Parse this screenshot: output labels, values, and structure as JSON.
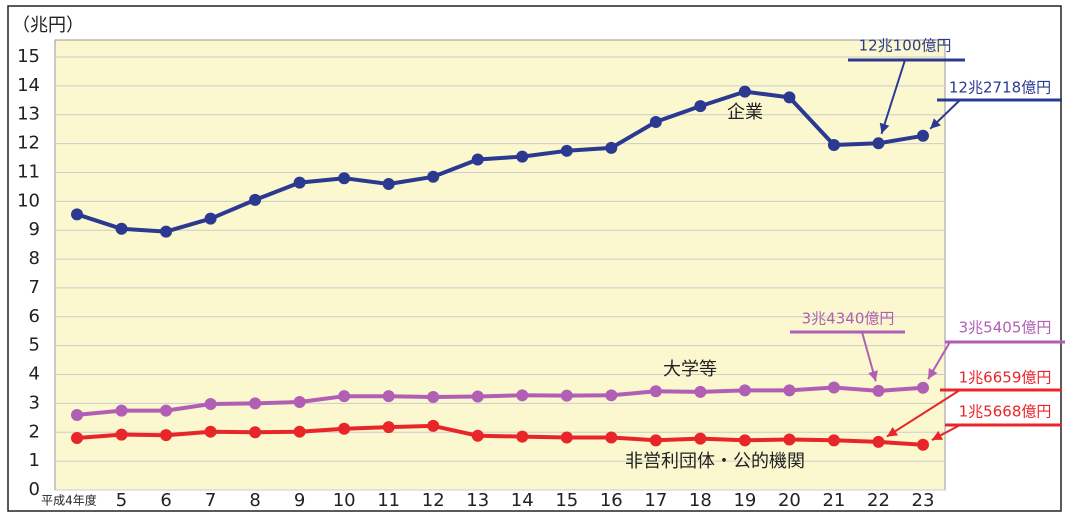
{
  "chart_data": {
    "type": "line",
    "y_label": "（兆円）",
    "categories": [
      "平成4年度",
      "5",
      "6",
      "7",
      "8",
      "9",
      "10",
      "11",
      "12",
      "13",
      "14",
      "15",
      "16",
      "17",
      "18",
      "19",
      "20",
      "21",
      "22",
      "23"
    ],
    "ylim": [
      0,
      15
    ],
    "yticks": [
      0,
      1,
      2,
      3,
      4,
      5,
      6,
      7,
      8,
      9,
      10,
      11,
      12,
      13,
      14,
      15
    ],
    "grid": true,
    "series": [
      {
        "name": "企業",
        "color": "#2b3990",
        "values": [
          9.55,
          9.05,
          8.95,
          9.4,
          10.05,
          10.65,
          10.8,
          10.6,
          10.85,
          11.45,
          11.55,
          11.75,
          11.85,
          12.75,
          13.3,
          13.8,
          13.6,
          11.95,
          12.01,
          12.2718
        ],
        "value_labels": [
          null,
          null,
          null,
          null,
          null,
          null,
          null,
          null,
          null,
          null,
          null,
          null,
          null,
          null,
          null,
          null,
          null,
          null,
          "12兆100億円",
          "12兆2718億円"
        ]
      },
      {
        "name": "大学等",
        "color": "#b05fb5",
        "values": [
          2.6,
          2.75,
          2.75,
          2.98,
          3.0,
          3.05,
          3.25,
          3.25,
          3.22,
          3.24,
          3.28,
          3.27,
          3.28,
          3.42,
          3.4,
          3.45,
          3.45,
          3.55,
          3.434,
          3.5405
        ],
        "value_labels": [
          null,
          null,
          null,
          null,
          null,
          null,
          null,
          null,
          null,
          null,
          null,
          null,
          null,
          null,
          null,
          null,
          null,
          null,
          "3兆4340億円",
          "3兆5405億円"
        ]
      },
      {
        "name": "非営利団体・公的機関",
        "color": "#e8262a",
        "values": [
          1.8,
          1.92,
          1.9,
          2.02,
          2.0,
          2.02,
          2.12,
          2.18,
          2.22,
          1.88,
          1.85,
          1.82,
          1.82,
          1.72,
          1.78,
          1.72,
          1.75,
          1.72,
          1.6659,
          1.5668
        ],
        "value_labels": [
          null,
          null,
          null,
          null,
          null,
          null,
          null,
          null,
          null,
          null,
          null,
          null,
          null,
          null,
          null,
          null,
          null,
          null,
          "1兆6659億円",
          "1兆5668億円"
        ]
      }
    ]
  }
}
